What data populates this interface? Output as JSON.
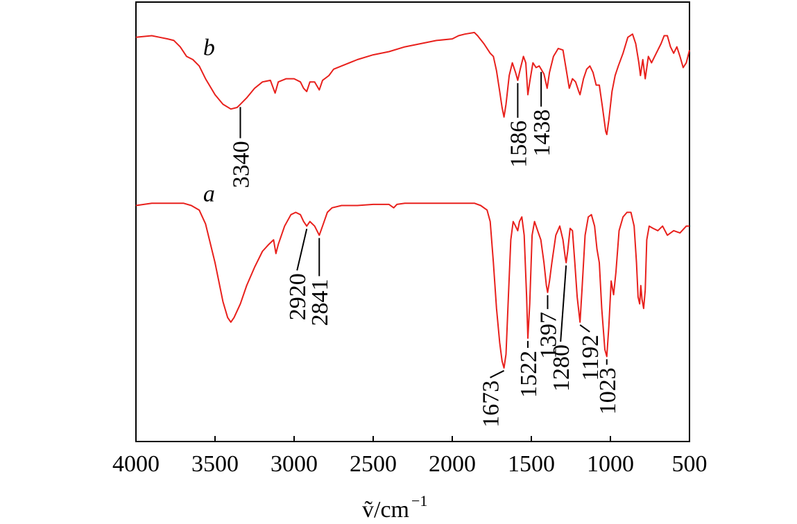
{
  "chart_data": {
    "type": "line",
    "title": "",
    "xlabel": "ṽ/cm",
    "xlabel_sup": "−1",
    "ylabel": "",
    "xlim": [
      4000,
      500
    ],
    "x_reversed": true,
    "y_ticks": false,
    "grid": false,
    "x_ticks": [
      4000,
      3500,
      3000,
      2500,
      2000,
      1500,
      1000,
      500
    ],
    "x_tick_labels": [
      "4000",
      "3500",
      "3000",
      "2500",
      "2000",
      "1500",
      "1000",
      "500"
    ],
    "line_color": "#e8201c",
    "series": [
      {
        "name": "b",
        "points": [
          [
            4000,
            0.94
          ],
          [
            3900,
            0.95
          ],
          [
            3850,
            0.94
          ],
          [
            3800,
            0.93
          ],
          [
            3760,
            0.92
          ],
          [
            3720,
            0.88
          ],
          [
            3680,
            0.82
          ],
          [
            3640,
            0.8
          ],
          [
            3600,
            0.76
          ],
          [
            3560,
            0.68
          ],
          [
            3500,
            0.58
          ],
          [
            3450,
            0.52
          ],
          [
            3400,
            0.49
          ],
          [
            3360,
            0.5
          ],
          [
            3340,
            0.52
          ],
          [
            3300,
            0.56
          ],
          [
            3250,
            0.62
          ],
          [
            3200,
            0.66
          ],
          [
            3150,
            0.67
          ],
          [
            3120,
            0.59
          ],
          [
            3100,
            0.66
          ],
          [
            3050,
            0.68
          ],
          [
            3000,
            0.68
          ],
          [
            2960,
            0.66
          ],
          [
            2940,
            0.62
          ],
          [
            2920,
            0.6
          ],
          [
            2900,
            0.66
          ],
          [
            2870,
            0.66
          ],
          [
            2841,
            0.61
          ],
          [
            2820,
            0.67
          ],
          [
            2780,
            0.7
          ],
          [
            2750,
            0.74
          ],
          [
            2700,
            0.76
          ],
          [
            2600,
            0.8
          ],
          [
            2500,
            0.83
          ],
          [
            2400,
            0.85
          ],
          [
            2300,
            0.88
          ],
          [
            2200,
            0.9
          ],
          [
            2100,
            0.92
          ],
          [
            2000,
            0.93
          ],
          [
            1960,
            0.95
          ],
          [
            1920,
            0.96
          ],
          [
            1860,
            0.97
          ],
          [
            1840,
            0.95
          ],
          [
            1800,
            0.9
          ],
          [
            1760,
            0.84
          ],
          [
            1740,
            0.82
          ],
          [
            1720,
            0.73
          ],
          [
            1700,
            0.6
          ],
          [
            1685,
            0.5
          ],
          [
            1673,
            0.44
          ],
          [
            1660,
            0.52
          ],
          [
            1640,
            0.7
          ],
          [
            1620,
            0.78
          ],
          [
            1600,
            0.72
          ],
          [
            1586,
            0.67
          ],
          [
            1570,
            0.74
          ],
          [
            1550,
            0.82
          ],
          [
            1535,
            0.78
          ],
          [
            1522,
            0.58
          ],
          [
            1510,
            0.66
          ],
          [
            1490,
            0.78
          ],
          [
            1470,
            0.75
          ],
          [
            1450,
            0.76
          ],
          [
            1438,
            0.74
          ],
          [
            1420,
            0.71
          ],
          [
            1400,
            0.62
          ],
          [
            1385,
            0.72
          ],
          [
            1360,
            0.82
          ],
          [
            1330,
            0.87
          ],
          [
            1300,
            0.86
          ],
          [
            1280,
            0.74
          ],
          [
            1260,
            0.62
          ],
          [
            1240,
            0.68
          ],
          [
            1220,
            0.66
          ],
          [
            1200,
            0.6
          ],
          [
            1192,
            0.58
          ],
          [
            1170,
            0.68
          ],
          [
            1150,
            0.74
          ],
          [
            1130,
            0.76
          ],
          [
            1110,
            0.72
          ],
          [
            1090,
            0.64
          ],
          [
            1070,
            0.64
          ],
          [
            1050,
            0.5
          ],
          [
            1030,
            0.35
          ],
          [
            1023,
            0.33
          ],
          [
            1010,
            0.42
          ],
          [
            990,
            0.6
          ],
          [
            970,
            0.7
          ],
          [
            950,
            0.76
          ],
          [
            920,
            0.84
          ],
          [
            890,
            0.94
          ],
          [
            860,
            0.96
          ],
          [
            840,
            0.9
          ],
          [
            820,
            0.78
          ],
          [
            810,
            0.7
          ],
          [
            795,
            0.8
          ],
          [
            780,
            0.68
          ],
          [
            760,
            0.82
          ],
          [
            740,
            0.78
          ],
          [
            720,
            0.82
          ],
          [
            700,
            0.86
          ],
          [
            680,
            0.9
          ],
          [
            660,
            0.95
          ],
          [
            640,
            0.95
          ],
          [
            620,
            0.88
          ],
          [
            600,
            0.84
          ],
          [
            580,
            0.88
          ],
          [
            560,
            0.82
          ],
          [
            540,
            0.75
          ],
          [
            520,
            0.78
          ],
          [
            500,
            0.86
          ]
        ]
      },
      {
        "name": "a",
        "points": [
          [
            4000,
            0.95
          ],
          [
            3900,
            0.96
          ],
          [
            3800,
            0.96
          ],
          [
            3700,
            0.96
          ],
          [
            3650,
            0.95
          ],
          [
            3600,
            0.93
          ],
          [
            3560,
            0.87
          ],
          [
            3500,
            0.7
          ],
          [
            3450,
            0.53
          ],
          [
            3420,
            0.46
          ],
          [
            3400,
            0.44
          ],
          [
            3380,
            0.46
          ],
          [
            3340,
            0.52
          ],
          [
            3300,
            0.6
          ],
          [
            3250,
            0.68
          ],
          [
            3200,
            0.75
          ],
          [
            3160,
            0.78
          ],
          [
            3130,
            0.8
          ],
          [
            3115,
            0.74
          ],
          [
            3100,
            0.78
          ],
          [
            3060,
            0.86
          ],
          [
            3020,
            0.91
          ],
          [
            2990,
            0.92
          ],
          [
            2960,
            0.91
          ],
          [
            2940,
            0.88
          ],
          [
            2920,
            0.86
          ],
          [
            2900,
            0.88
          ],
          [
            2870,
            0.86
          ],
          [
            2841,
            0.82
          ],
          [
            2820,
            0.86
          ],
          [
            2790,
            0.92
          ],
          [
            2760,
            0.94
          ],
          [
            2700,
            0.95
          ],
          [
            2600,
            0.95
          ],
          [
            2500,
            0.955
          ],
          [
            2400,
            0.955
          ],
          [
            2370,
            0.94
          ],
          [
            2350,
            0.955
          ],
          [
            2300,
            0.96
          ],
          [
            2200,
            0.96
          ],
          [
            2100,
            0.96
          ],
          [
            2000,
            0.96
          ],
          [
            1900,
            0.96
          ],
          [
            1860,
            0.96
          ],
          [
            1820,
            0.95
          ],
          [
            1780,
            0.93
          ],
          [
            1760,
            0.88
          ],
          [
            1740,
            0.7
          ],
          [
            1720,
            0.5
          ],
          [
            1700,
            0.35
          ],
          [
            1685,
            0.27
          ],
          [
            1673,
            0.24
          ],
          [
            1660,
            0.3
          ],
          [
            1645,
            0.55
          ],
          [
            1630,
            0.8
          ],
          [
            1615,
            0.88
          ],
          [
            1600,
            0.86
          ],
          [
            1586,
            0.84
          ],
          [
            1575,
            0.88
          ],
          [
            1560,
            0.9
          ],
          [
            1545,
            0.82
          ],
          [
            1530,
            0.55
          ],
          [
            1522,
            0.37
          ],
          [
            1510,
            0.52
          ],
          [
            1495,
            0.82
          ],
          [
            1480,
            0.88
          ],
          [
            1460,
            0.84
          ],
          [
            1440,
            0.8
          ],
          [
            1420,
            0.7
          ],
          [
            1405,
            0.6
          ],
          [
            1397,
            0.57
          ],
          [
            1385,
            0.62
          ],
          [
            1370,
            0.7
          ],
          [
            1345,
            0.82
          ],
          [
            1320,
            0.86
          ],
          [
            1300,
            0.8
          ],
          [
            1285,
            0.72
          ],
          [
            1280,
            0.7
          ],
          [
            1270,
            0.75
          ],
          [
            1255,
            0.85
          ],
          [
            1240,
            0.84
          ],
          [
            1225,
            0.7
          ],
          [
            1210,
            0.55
          ],
          [
            1192,
            0.44
          ],
          [
            1180,
            0.58
          ],
          [
            1160,
            0.82
          ],
          [
            1140,
            0.9
          ],
          [
            1120,
            0.91
          ],
          [
            1100,
            0.86
          ],
          [
            1085,
            0.76
          ],
          [
            1070,
            0.7
          ],
          [
            1055,
            0.5
          ],
          [
            1035,
            0.32
          ],
          [
            1023,
            0.29
          ],
          [
            1010,
            0.42
          ],
          [
            995,
            0.62
          ],
          [
            980,
            0.56
          ],
          [
            965,
            0.66
          ],
          [
            945,
            0.84
          ],
          [
            920,
            0.9
          ],
          [
            895,
            0.92
          ],
          [
            870,
            0.92
          ],
          [
            850,
            0.86
          ],
          [
            835,
            0.7
          ],
          [
            825,
            0.55
          ],
          [
            815,
            0.52
          ],
          [
            808,
            0.6
          ],
          [
            800,
            0.54
          ],
          [
            790,
            0.5
          ],
          [
            780,
            0.58
          ],
          [
            770,
            0.8
          ],
          [
            755,
            0.86
          ],
          [
            730,
            0.85
          ],
          [
            700,
            0.84
          ],
          [
            670,
            0.86
          ],
          [
            640,
            0.82
          ],
          [
            600,
            0.84
          ],
          [
            560,
            0.83
          ],
          [
            520,
            0.86
          ],
          [
            500,
            0.86
          ]
        ]
      }
    ],
    "series_labels": [
      {
        "text": "b",
        "x": 3610,
        "series": "b",
        "offset": 0.11
      },
      {
        "text": "a",
        "x": 3610,
        "series": "a",
        "offset": 0.07
      }
    ],
    "annotations": [
      {
        "text": "3340",
        "series": "b",
        "x": 3340
      },
      {
        "text": "1586",
        "series": "b",
        "x": 1586
      },
      {
        "text": "1438",
        "series": "b",
        "x": 1438
      },
      {
        "text": "2920",
        "series": "a",
        "x": 2920
      },
      {
        "text": "2841",
        "series": "a",
        "x": 2841
      },
      {
        "text": "1673",
        "series": "a",
        "x": 1673
      },
      {
        "text": "1522",
        "series": "a",
        "x": 1522
      },
      {
        "text": "1397",
        "series": "a",
        "x": 1397
      },
      {
        "text": "1280",
        "series": "a",
        "x": 1280
      },
      {
        "text": "1192",
        "series": "a",
        "x": 1192
      },
      {
        "text": "1023",
        "series": "a",
        "x": 1023
      }
    ]
  }
}
